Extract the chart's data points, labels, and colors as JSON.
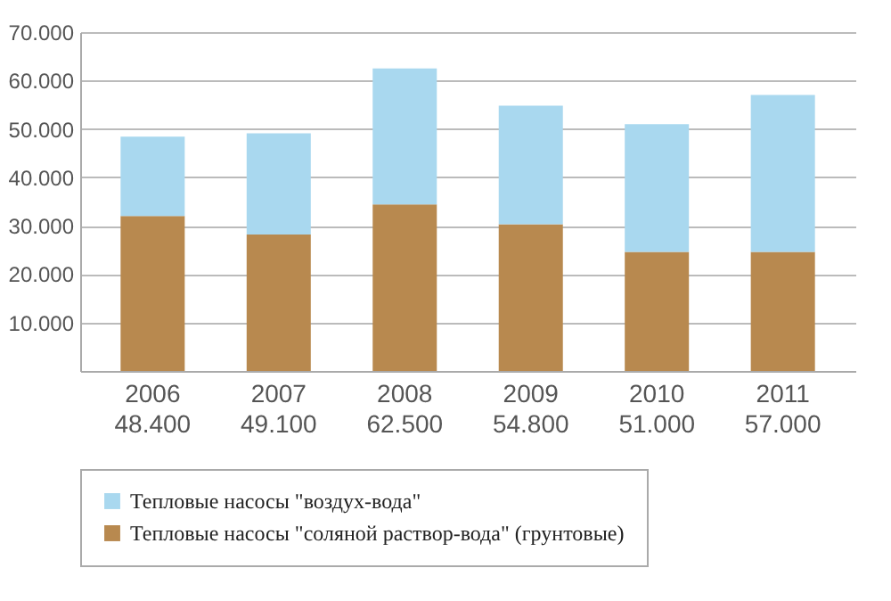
{
  "chart_data": {
    "type": "bar",
    "stacked": true,
    "categories": [
      "2006",
      "2007",
      "2008",
      "2009",
      "2010",
      "2011"
    ],
    "totals": [
      "48.400",
      "49.100",
      "62.500",
      "54.800",
      "51.000",
      "57.000"
    ],
    "series": [
      {
        "name": "Тепловые насосы \"соляной раствор-вода\" (грунтовые)",
        "color": "#b8894f",
        "values": [
          32000,
          28200,
          34400,
          30300,
          24600,
          24600
        ]
      },
      {
        "name": "Тепловые насосы \"воздух-вода\"",
        "color": "#a9d8ef",
        "values": [
          16400,
          20900,
          28100,
          24500,
          26400,
          32400
        ]
      }
    ],
    "ylim": [
      0,
      70000
    ],
    "yticks": [
      {
        "value": 10000,
        "label": "10.000"
      },
      {
        "value": 20000,
        "label": "20.000"
      },
      {
        "value": 30000,
        "label": "30.000"
      },
      {
        "value": 40000,
        "label": "40.000"
      },
      {
        "value": 50000,
        "label": "50.000"
      },
      {
        "value": 60000,
        "label": "60.000"
      },
      {
        "value": 70000,
        "label": "70.000"
      }
    ],
    "grid": "y",
    "legend": "bottom"
  }
}
